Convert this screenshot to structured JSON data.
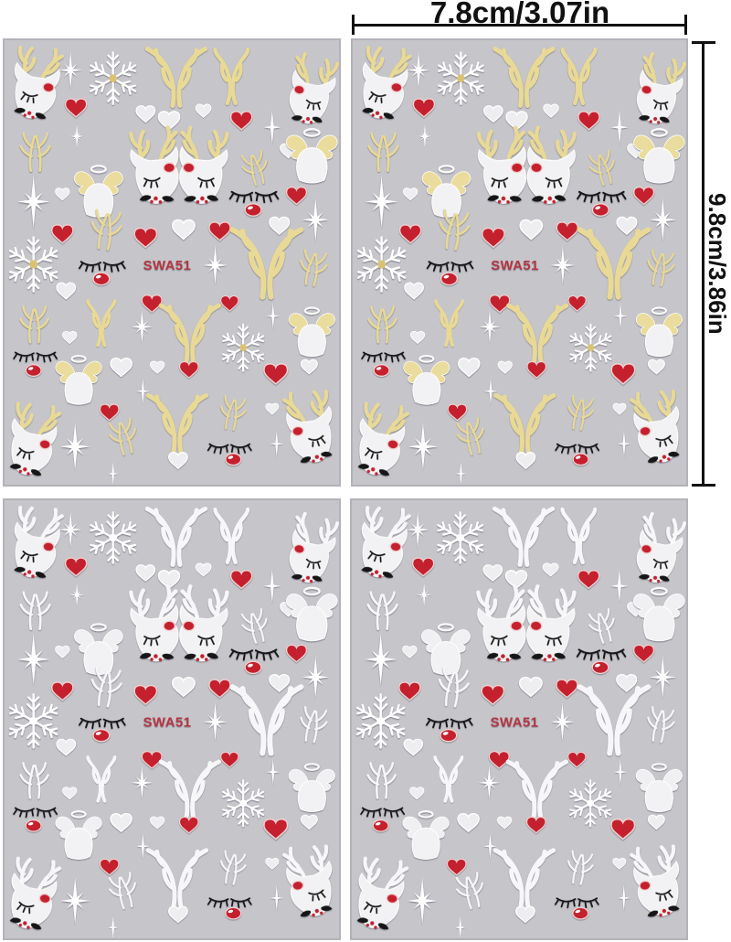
{
  "annotations": {
    "width_label": "7.8cm/3.07in",
    "height_label": "9.8cm/3.86in"
  },
  "sheets": [
    {
      "name": "sticker-sheet-top-left",
      "code": "SWA51",
      "palette": "gold"
    },
    {
      "name": "sticker-sheet-top-right",
      "code": "SWA51",
      "palette": "gold"
    },
    {
      "name": "sticker-sheet-bottom-left",
      "code": "SWA51",
      "palette": "silver"
    },
    {
      "name": "sticker-sheet-bottom-right",
      "code": "SWA51",
      "palette": "silver"
    }
  ],
  "palettes": {
    "gold": {
      "antler": "#e8d996",
      "wing": "#eadc9c",
      "flake_center": "#d9c372"
    },
    "silver": {
      "antler": "#f7f7f9",
      "wing": "#f0f0f3",
      "flake_center": "#ffffff"
    }
  },
  "colors": {
    "background": "#ffffff",
    "sheet_background": "#c6c5ca",
    "sheet_border": "#b3b2b8",
    "sticker_white": "#f2f2f4",
    "sticker_white_outline": "#ffffff",
    "snow_white": "#ffffff",
    "red": "#c5202e",
    "red_outline": "#f0d2d0",
    "black": "#161616",
    "code_color": "#b53642",
    "dimension_color": "#111111"
  },
  "icons": {
    "sticker_types": [
      "reindeer",
      "antlers",
      "red-heart",
      "white-heart",
      "snowflake",
      "sparkle",
      "angel",
      "eyelashes",
      "bead"
    ]
  }
}
